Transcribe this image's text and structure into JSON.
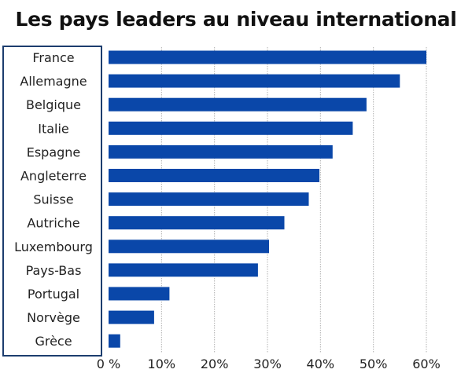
{
  "chart_data": {
    "type": "bar",
    "orientation": "horizontal",
    "title": "Les pays leaders au niveau international",
    "categories": [
      "France",
      "Allemagne",
      "Belgique",
      "Italie",
      "Espagne",
      "Angleterre",
      "Suisse",
      "Autriche",
      "Luxembourg",
      "Pays-Bas",
      "Portugal",
      "Norvège",
      "Grèce"
    ],
    "values": [
      60,
      55,
      48.7,
      46.1,
      42.3,
      39.8,
      37.8,
      33.2,
      30.3,
      28.2,
      11.5,
      8.6,
      2.2
    ],
    "xlim": [
      0,
      60
    ],
    "x_ticks": [
      0,
      10,
      20,
      30,
      40,
      50,
      60
    ],
    "x_tick_labels": [
      "0 %",
      "10%",
      "20%",
      "30%",
      "40%",
      "50%",
      "60%"
    ],
    "grid": "vertical",
    "colors": {
      "bar": "#0a47a9",
      "grid": "#b0b0b0",
      "label_box": "#1c3d6e"
    }
  }
}
